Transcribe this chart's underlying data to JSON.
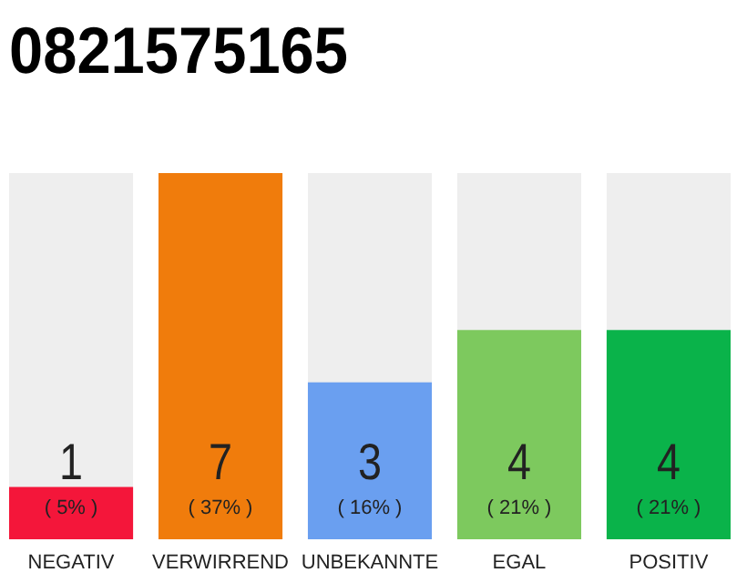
{
  "chart_data": {
    "type": "bar",
    "title": "0821575165",
    "categories": [
      "NEGATIV",
      "VERWIRREND",
      "UNBEKANNTE",
      "EGAL",
      "POSITIV"
    ],
    "values": [
      1,
      7,
      3,
      4,
      4
    ],
    "colors": [
      "#f4163a",
      "#f07c0c",
      "#6a9ff0",
      "#7dc95e",
      "#0ab34a"
    ],
    "ylim": [
      0,
      7
    ],
    "tick_labels": "x",
    "data_labels": true,
    "annotations": [
      "( 5% )",
      "( 37% )",
      "( 16% )",
      "( 21% )",
      "( 21% )"
    ]
  }
}
